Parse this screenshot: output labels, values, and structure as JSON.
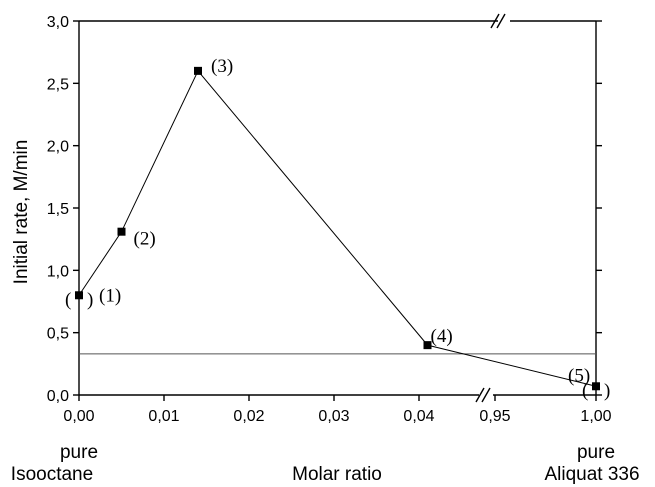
{
  "chart_data": {
    "type": "line",
    "title": "",
    "xlabel": "Molar ratio",
    "ylabel": "Initial rate, M/min",
    "ylim": [
      0,
      3.0
    ],
    "x_axis_break": "between 0,04 and 0,95",
    "x_ticks": [
      "0,00",
      "0,01",
      "0,02",
      "0,03",
      "0,04",
      "0,95",
      "1,00"
    ],
    "y_ticks": [
      "0,0",
      "0,5",
      "1,0",
      "1,5",
      "2,0",
      "2,5",
      "3,0"
    ],
    "series": [
      {
        "points": [
          {
            "x": 0.0,
            "y": 0.8,
            "label": "(1)"
          },
          {
            "x": 0.005,
            "y": 1.31,
            "label": "(2)"
          },
          {
            "x": 0.014,
            "y": 2.6,
            "label": "(3)"
          },
          {
            "x": 0.041,
            "y": 0.4,
            "label": "(4)"
          },
          {
            "x": 1.0,
            "y": 0.07,
            "label": "(5)"
          }
        ]
      }
    ],
    "reference_line_y": 0.33,
    "under_labels": {
      "left_line1": "pure",
      "left_line2": "Isooctane",
      "right_line1": "pure",
      "right_line2": "Aliquat 336"
    },
    "grid": false,
    "colors": {
      "line": "#000000",
      "marker": "#000000",
      "reference": "#555555"
    }
  }
}
